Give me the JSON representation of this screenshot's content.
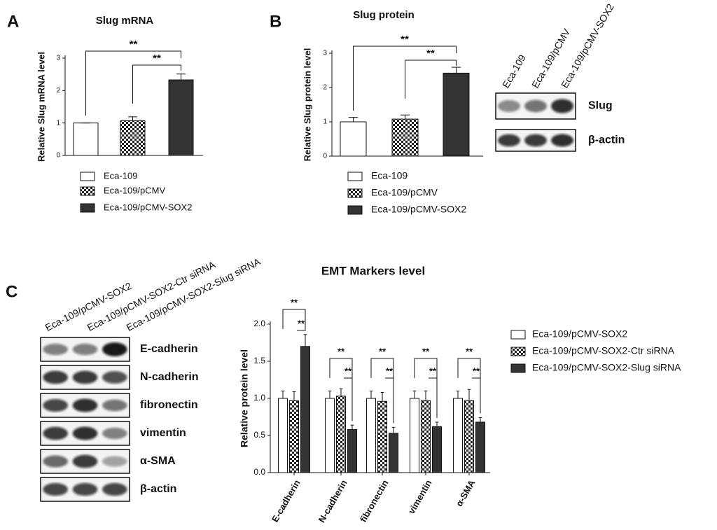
{
  "panel_letters": [
    "A",
    "B",
    "C"
  ],
  "chart_data": [
    {
      "type": "bar",
      "title": "Slug mRNA",
      "ylabel": "Relative Slug mRNA level",
      "categories": [
        "Eca-109",
        "Eca-109/pCMV",
        "Eca-109/pCMV-SOX2"
      ],
      "values": [
        1.0,
        1.07,
        2.33
      ],
      "errors": [
        0,
        0.12,
        0.18
      ],
      "colors": [
        "#ffffff",
        "checker",
        "#333333"
      ],
      "ylim": [
        0,
        3
      ],
      "yticks": [
        0,
        1,
        2,
        3
      ],
      "significance": [
        "**",
        "**"
      ]
    },
    {
      "type": "bar",
      "title": "Slug protein",
      "ylabel": "Relative Slug protein level",
      "categories": [
        "Eca-109",
        "Eca-109/pCMV",
        "Eca-109/pCMV-SOX2"
      ],
      "values": [
        1.0,
        1.08,
        2.42
      ],
      "errors": [
        0.13,
        0.12,
        0.17
      ],
      "colors": [
        "#ffffff",
        "checker",
        "#333333"
      ],
      "ylim": [
        0,
        3
      ],
      "yticks": [
        0,
        1,
        2,
        3
      ],
      "significance": [
        "**",
        "**"
      ]
    },
    {
      "type": "grouped_bar",
      "title": "EMT Markers level",
      "ylabel": "Relative protein level",
      "categories": [
        "E-cadherin",
        "N-cadherin",
        "fibronectin",
        "vimentin",
        "α-SMA"
      ],
      "series": [
        {
          "name": "Eca-109/pCMV-SOX2",
          "color": "#ffffff",
          "values": [
            1.0,
            1.0,
            1.0,
            1.0,
            1.0
          ],
          "errors": [
            0.1,
            0.1,
            0.1,
            0.1,
            0.1
          ]
        },
        {
          "name": "Eca-109/pCMV-SOX2-Ctr siRNA",
          "color": "checker",
          "values": [
            0.97,
            1.03,
            0.96,
            0.97,
            0.97
          ],
          "errors": [
            0.12,
            0.1,
            0.12,
            0.13,
            0.15
          ]
        },
        {
          "name": "Eca-109/pCMV-SOX2-Slug siRNA",
          "color": "#333333",
          "values": [
            1.7,
            0.58,
            0.53,
            0.62,
            0.68
          ],
          "errors": [
            0.16,
            0.06,
            0.08,
            0.06,
            0.06
          ]
        }
      ],
      "ylim": [
        0,
        2
      ],
      "yticks": [
        {
          "value": 0,
          "label": "0.0"
        },
        {
          "value": 0.5,
          "label": "0.5"
        },
        {
          "value": 1,
          "label": "1.0"
        },
        {
          "value": 1.5,
          "label": "1.5"
        },
        {
          "value": 2,
          "label": "2.0"
        }
      ],
      "significance": [
        "**",
        "**",
        "**",
        "**",
        "**",
        "**",
        "**",
        "**",
        "**",
        "**"
      ]
    }
  ],
  "blots": [
    {
      "lanes": [
        "Eca-109",
        "Eca-109/pCMV",
        "Eca-109/pCMV-SOX2"
      ],
      "bands": [
        "Slug",
        "β-actin"
      ]
    },
    {
      "lanes": [
        "Eca-109/pCMV-SOX2",
        "Eca-109/pCMV-SOX2-Ctr siRNA",
        "Eca-109/pCMV-SOX2-Slug siRNA"
      ],
      "bands": [
        "E-cadherin",
        "N-cadherin",
        "fibronectin",
        "vimentin",
        "α-SMA",
        "β-actin"
      ]
    }
  ]
}
